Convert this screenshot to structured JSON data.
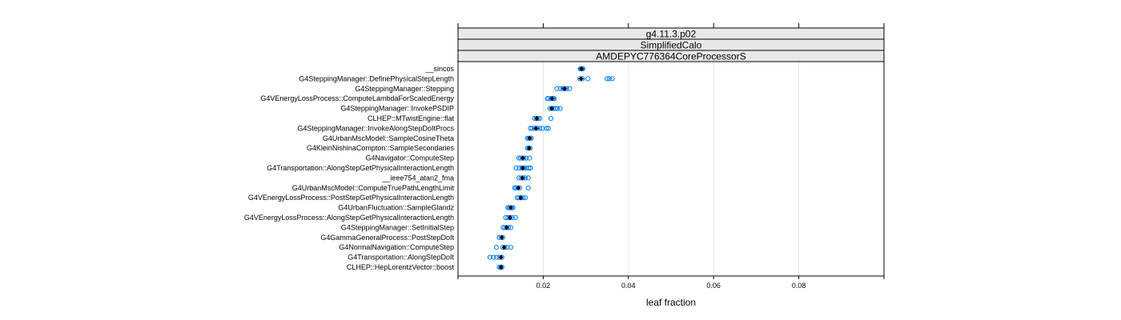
{
  "chart_data": {
    "type": "scatter",
    "strips": [
      "g4.11.3.p02",
      "SimplifiedCalo",
      "AMDEPYC776364CoreProcessorS"
    ],
    "xlabel": "leaf fraction",
    "xlim": [
      0.0,
      0.1
    ],
    "xticks": [
      0.02,
      0.04,
      0.06,
      0.08
    ],
    "xtick_labels": [
      "0.02",
      "0.04",
      "0.06",
      "0.08"
    ],
    "grid": "vertical",
    "point_color": "#0080ff",
    "marker_color": "#000000",
    "categories": [
      "__sincos",
      "G4SteppingManager::DefinePhysicalStepLength",
      "G4SteppingManager::Stepping",
      "G4VEnergyLossProcess::ComputeLambdaForScaledEnergy",
      "G4SteppingManager::InvokePSDIP",
      "CLHEP::MTwistEngine::flat",
      "G4SteppingManager::InvokeAlongStepDoItProcs",
      "G4UrbanMscModel::SampleCosineTheta",
      "G4KleinNishinaCompton::SampleSecondaries",
      "G4Navigator::ComputeStep",
      "G4Transportation::AlongStepGetPhysicalInteractionLength",
      "__ieee754_atan2_fma",
      "G4UrbanMscModel::ComputeTruePathLengthLimit",
      "G4VEnergyLossProcess::PostStepGetPhysicalInteractionLength",
      "G4UrbanFluctuation::SampleGlandz",
      "G4VEnergyLossProcess::AlongStepGetPhysicalInteractionLength",
      "G4SteppingManager::SetInitialStep",
      "G4GammaGeneralProcess::PostStepDoIt",
      "G4NormalNavigation::ComputeStep",
      "G4Transportation::AlongStepDoIt",
      "CLHEP::HepLorentzVector::boost"
    ],
    "medians": [
      0.029,
      0.0289,
      0.025,
      0.0221,
      0.022,
      0.0185,
      0.0183,
      0.0168,
      0.0167,
      0.0152,
      0.0152,
      0.0151,
      0.0142,
      0.0147,
      0.0124,
      0.0122,
      0.0114,
      0.0103,
      0.0108,
      0.0101,
      0.0101
    ],
    "ranges": [
      [
        0.0285,
        0.0295
      ],
      [
        0.0282,
        0.0297
      ],
      [
        0.0242,
        0.0258
      ],
      [
        0.0214,
        0.0229
      ],
      [
        0.0216,
        0.0226
      ],
      [
        0.018,
        0.0191
      ],
      [
        0.0176,
        0.019
      ],
      [
        0.0164,
        0.0172
      ],
      [
        0.0163,
        0.0171
      ],
      [
        0.0147,
        0.0158
      ],
      [
        0.0146,
        0.016
      ],
      [
        0.0146,
        0.0157
      ],
      [
        0.0137,
        0.0147
      ],
      [
        0.0142,
        0.0152
      ],
      [
        0.012,
        0.0128
      ],
      [
        0.0117,
        0.0126
      ],
      [
        0.011,
        0.0118
      ],
      [
        0.0099,
        0.0106
      ],
      [
        0.0104,
        0.0113
      ],
      [
        0.0098,
        0.0104
      ],
      [
        0.0098,
        0.0105
      ]
    ],
    "points": [
      [
        0.0287,
        0.0289,
        0.0291,
        0.0293
      ],
      [
        0.0286,
        0.0292,
        0.0305,
        0.035,
        0.0355,
        0.0362
      ],
      [
        0.0232,
        0.024,
        0.0246,
        0.025,
        0.0255,
        0.0262
      ],
      [
        0.021,
        0.0213,
        0.0218,
        0.0223,
        0.0226
      ],
      [
        0.0216,
        0.022,
        0.0224,
        0.0229,
        0.0233,
        0.024
      ],
      [
        0.018,
        0.0184,
        0.0188,
        0.0192,
        0.0218
      ],
      [
        0.017,
        0.0174,
        0.018,
        0.0186,
        0.0192,
        0.0198,
        0.0208,
        0.0212
      ],
      [
        0.0163,
        0.0166,
        0.0169,
        0.0172
      ],
      [
        0.0163,
        0.0166,
        0.0169
      ],
      [
        0.0143,
        0.0147,
        0.0151,
        0.0155,
        0.016,
        0.0168
      ],
      [
        0.0136,
        0.0144,
        0.015,
        0.0155,
        0.016,
        0.0166,
        0.017
      ],
      [
        0.0143,
        0.0148,
        0.0153,
        0.0158,
        0.0165
      ],
      [
        0.0133,
        0.0136,
        0.014,
        0.0145,
        0.0165
      ],
      [
        0.0139,
        0.0143,
        0.0148,
        0.0153,
        0.0158
      ],
      [
        0.0117,
        0.012,
        0.0123,
        0.0126,
        0.0129
      ],
      [
        0.0112,
        0.0117,
        0.0122,
        0.0127,
        0.0135
      ],
      [
        0.0106,
        0.011,
        0.0115,
        0.0119,
        0.0124
      ],
      [
        0.0097,
        0.0101,
        0.0105
      ],
      [
        0.009,
        0.0105,
        0.011,
        0.0115,
        0.0124
      ],
      [
        0.0075,
        0.0083,
        0.0091,
        0.0097,
        0.0103
      ],
      [
        0.0097,
        0.01,
        0.0103
      ]
    ]
  }
}
